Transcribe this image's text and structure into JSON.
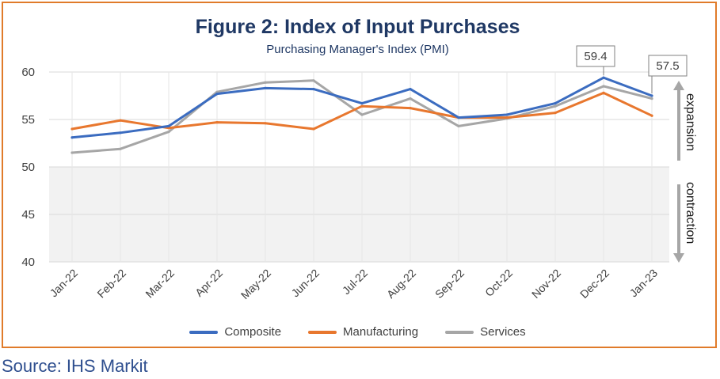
{
  "source_text": "Source: IHS Markit",
  "zone_labels": {
    "expansion": "expansion",
    "contraction": "contraction"
  },
  "colors": {
    "frame": "#e07b2a",
    "title": "#1f3864",
    "composite": "#3b6cc0",
    "manufacturing": "#e8772e",
    "services": "#a6a6a6",
    "contraction_zone": "#f2f2f2",
    "grid": "#d9d9d9"
  },
  "chart_data": {
    "type": "line",
    "title": "Figure 2: Index of Input Purchases",
    "subtitle": "Purchasing Manager's Index (PMI)",
    "xlabel": "",
    "ylabel": "",
    "categories": [
      "Jan-22",
      "Feb-22",
      "Mar-22",
      "Apr-22",
      "May-22",
      "Jun-22",
      "Jul-22",
      "Aug-22",
      "Sep-22",
      "Oct-22",
      "Nov-22",
      "Dec-22",
      "Jan-23"
    ],
    "ylim": [
      40,
      60
    ],
    "yticks": [
      40,
      45,
      50,
      55,
      60
    ],
    "grid": "horizontal",
    "legend_position": "bottom",
    "threshold": 50,
    "series": [
      {
        "name": "Composite",
        "color": "#3b6cc0",
        "values": [
          53.1,
          53.6,
          54.3,
          57.7,
          58.3,
          58.2,
          56.7,
          58.2,
          55.2,
          55.5,
          56.7,
          59.4,
          57.5
        ]
      },
      {
        "name": "Manufacturing",
        "color": "#e8772e",
        "values": [
          54.0,
          54.9,
          54.1,
          54.7,
          54.6,
          54.0,
          56.4,
          56.2,
          55.2,
          55.2,
          55.7,
          57.8,
          55.4
        ]
      },
      {
        "name": "Services",
        "color": "#a6a6a6",
        "values": [
          51.5,
          51.9,
          53.7,
          57.9,
          58.9,
          59.1,
          55.5,
          57.2,
          54.3,
          55.1,
          56.4,
          58.5,
          57.2
        ]
      }
    ],
    "callouts": [
      {
        "text": "59.4",
        "category": "Dec-22",
        "value": 59.4
      },
      {
        "text": "57.5",
        "category": "Jan-23",
        "value": 57.5
      }
    ]
  }
}
